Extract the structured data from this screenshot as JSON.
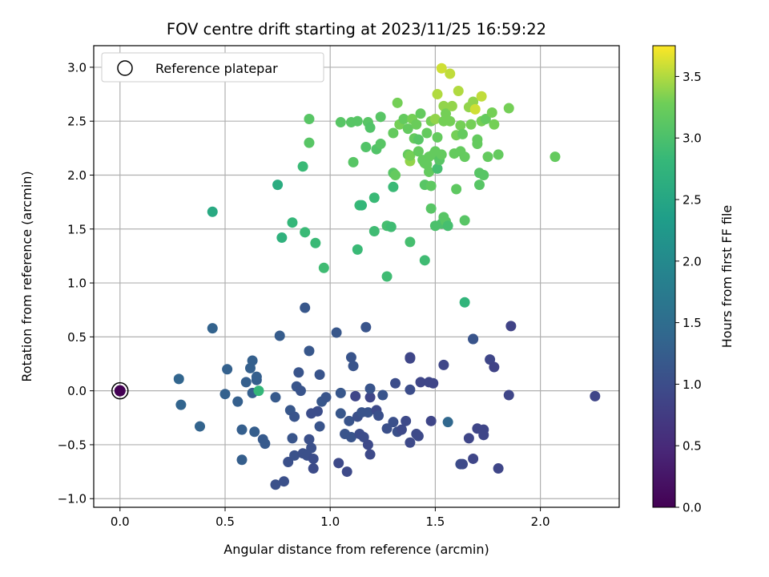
{
  "chart_data": {
    "type": "scatter",
    "title": "FOV centre drift starting at 2023/11/25 16:59:22",
    "xlabel": "Angular distance from reference (arcmin)",
    "ylabel": "Rotation from reference (arcmin)",
    "xlim": [
      -0.125,
      2.375
    ],
    "ylim": [
      -1.08,
      3.2
    ],
    "xticks": [
      0.0,
      0.5,
      1.0,
      1.5,
      2.0
    ],
    "xtick_labels": [
      "0.0",
      "0.5",
      "1.0",
      "1.5",
      "2.0"
    ],
    "yticks": [
      -1.0,
      -0.5,
      0.0,
      0.5,
      1.0,
      1.5,
      2.0,
      2.5,
      3.0
    ],
    "ytick_labels": [
      "−1.0",
      "−0.5",
      "0.0",
      "0.5",
      "1.0",
      "1.5",
      "2.0",
      "2.5",
      "3.0"
    ],
    "grid": true,
    "legend": {
      "position": "top-left",
      "label": "Reference platepar"
    },
    "colormap": "viridis",
    "colorbar": {
      "label": "Hours from first FF file",
      "range": [
        0.0,
        3.75
      ],
      "ticks": [
        0.0,
        0.5,
        1.0,
        1.5,
        2.0,
        2.5,
        3.0,
        3.5
      ],
      "tick_labels": [
        "0.0",
        "0.5",
        "1.0",
        "1.5",
        "2.0",
        "2.5",
        "3.0",
        "3.5"
      ]
    },
    "reference_point": {
      "x": 0.0,
      "y": 0.0,
      "c": 0.0
    },
    "points": [
      [
        0.28,
        0.11,
        1.38
      ],
      [
        0.29,
        -0.13,
        1.36
      ],
      [
        0.38,
        -0.33,
        1.34
      ],
      [
        0.44,
        0.58,
        1.33
      ],
      [
        0.5,
        -0.03,
        1.3
      ],
      [
        0.51,
        0.2,
        1.3
      ],
      [
        0.56,
        -0.1,
        1.28
      ],
      [
        0.58,
        -0.36,
        1.27
      ],
      [
        0.58,
        -0.64,
        1.25
      ],
      [
        0.6,
        0.08,
        1.27
      ],
      [
        0.62,
        0.21,
        1.28
      ],
      [
        0.63,
        0.28,
        1.28
      ],
      [
        0.63,
        -0.02,
        1.28
      ],
      [
        0.64,
        -0.38,
        1.25
      ],
      [
        0.65,
        0.1,
        1.25
      ],
      [
        0.65,
        0.13,
        1.27
      ],
      [
        0.66,
        0.0,
        2.8
      ],
      [
        0.68,
        -0.45,
        1.2
      ],
      [
        0.69,
        -0.49,
        1.2
      ],
      [
        0.74,
        -0.87,
        1.05
      ],
      [
        0.74,
        -0.06,
        1.2
      ],
      [
        0.76,
        0.51,
        1.22
      ],
      [
        0.78,
        -0.84,
        1.05
      ],
      [
        0.8,
        -0.66,
        1.05
      ],
      [
        0.81,
        -0.18,
        1.15
      ],
      [
        0.82,
        -0.44,
        1.12
      ],
      [
        0.83,
        -0.24,
        1.1
      ],
      [
        0.83,
        -0.6,
        1.08
      ],
      [
        0.84,
        0.04,
        1.12
      ],
      [
        0.85,
        0.17,
        1.1
      ],
      [
        0.86,
        0.0,
        1.1
      ],
      [
        0.87,
        -0.58,
        1.05
      ],
      [
        0.88,
        0.77,
        1.15
      ],
      [
        0.89,
        -0.6,
        1.05
      ],
      [
        0.9,
        0.37,
        1.15
      ],
      [
        0.9,
        -0.45,
        1.05
      ],
      [
        0.91,
        -0.21,
        1.0
      ],
      [
        0.91,
        -0.53,
        1.05
      ],
      [
        0.92,
        -0.72,
        0.98
      ],
      [
        0.92,
        -0.63,
        1.0
      ],
      [
        0.94,
        -0.19,
        1.0
      ],
      [
        0.95,
        -0.33,
        1.1
      ],
      [
        0.95,
        0.15,
        1.1
      ],
      [
        0.96,
        -0.1,
        1.15
      ],
      [
        0.98,
        -0.06,
        1.12
      ],
      [
        1.03,
        0.54,
        1.15
      ],
      [
        1.04,
        -0.67,
        0.95
      ],
      [
        1.05,
        -0.21,
        1.15
      ],
      [
        1.05,
        -0.02,
        1.15
      ],
      [
        1.07,
        -0.4,
        1.1
      ],
      [
        1.08,
        -0.75,
        0.95
      ],
      [
        1.09,
        -0.28,
        1.1
      ],
      [
        1.1,
        -0.43,
        1.1
      ],
      [
        1.1,
        0.31,
        1.1
      ],
      [
        1.11,
        0.23,
        1.1
      ],
      [
        1.12,
        -0.05,
        0.9
      ],
      [
        1.13,
        -0.24,
        1.05
      ],
      [
        1.14,
        -0.4,
        1.0
      ],
      [
        1.15,
        -0.2,
        1.1
      ],
      [
        1.16,
        -0.43,
        1.0
      ],
      [
        1.17,
        0.59,
        1.1
      ],
      [
        1.18,
        -0.2,
        1.1
      ],
      [
        1.18,
        -0.5,
        0.95
      ],
      [
        1.19,
        -0.59,
        0.95
      ],
      [
        1.19,
        -0.06,
        0.9
      ],
      [
        1.19,
        0.02,
        1.1
      ],
      [
        1.22,
        -0.18,
        0.95
      ],
      [
        1.23,
        -0.23,
        1.05
      ],
      [
        1.25,
        -0.04,
        1.1
      ],
      [
        1.27,
        -0.35,
        1.05
      ],
      [
        1.3,
        -0.29,
        1.05
      ],
      [
        1.31,
        0.07,
        1.0
      ],
      [
        1.32,
        -0.38,
        1.05
      ],
      [
        1.34,
        -0.36,
        0.95
      ],
      [
        1.36,
        -0.28,
        0.95
      ],
      [
        1.38,
        0.3,
        0.9
      ],
      [
        1.38,
        0.31,
        0.9
      ],
      [
        1.38,
        -0.48,
        0.95
      ],
      [
        1.38,
        0.01,
        1.0
      ],
      [
        1.41,
        -0.4,
        0.95
      ],
      [
        1.42,
        -0.42,
        0.95
      ],
      [
        1.43,
        0.08,
        0.9
      ],
      [
        1.47,
        0.08,
        0.9
      ],
      [
        1.48,
        -0.28,
        0.9
      ],
      [
        1.49,
        0.07,
        0.9
      ],
      [
        1.54,
        0.24,
        0.9
      ],
      [
        1.56,
        -0.29,
        1.4
      ],
      [
        1.62,
        -0.68,
        1.0
      ],
      [
        1.63,
        -0.68,
        0.95
      ],
      [
        1.66,
        -0.44,
        0.9
      ],
      [
        1.68,
        0.48,
        1.0
      ],
      [
        1.68,
        0.48,
        1.1
      ],
      [
        1.68,
        -0.63,
        0.9
      ],
      [
        1.7,
        -0.35,
        0.9
      ],
      [
        1.73,
        -0.36,
        0.9
      ],
      [
        1.73,
        -0.41,
        0.9
      ],
      [
        1.76,
        0.29,
        0.9
      ],
      [
        1.78,
        0.22,
        0.85
      ],
      [
        1.8,
        -0.72,
        0.9
      ],
      [
        1.85,
        -0.04,
        0.9
      ],
      [
        1.86,
        0.6,
        0.85
      ],
      [
        2.26,
        -0.05,
        0.9
      ],
      [
        0.44,
        1.66,
        2.55
      ],
      [
        0.75,
        1.91,
        2.6
      ],
      [
        0.77,
        1.42,
        2.7
      ],
      [
        0.82,
        1.56,
        2.8
      ],
      [
        0.88,
        1.47,
        2.85
      ],
      [
        0.87,
        2.08,
        2.85
      ],
      [
        0.9,
        2.3,
        3.1
      ],
      [
        0.9,
        2.52,
        3.1
      ],
      [
        0.93,
        1.37,
        2.85
      ],
      [
        0.97,
        1.14,
        2.9
      ],
      [
        1.05,
        2.49,
        3.1
      ],
      [
        1.1,
        2.49,
        3.1
      ],
      [
        1.11,
        2.12,
        3.1
      ],
      [
        1.13,
        2.5,
        3.1
      ],
      [
        1.13,
        1.31,
        2.85
      ],
      [
        1.14,
        1.72,
        2.85
      ],
      [
        1.15,
        1.72,
        2.8
      ],
      [
        1.17,
        2.26,
        3.05
      ],
      [
        1.18,
        2.49,
        3.1
      ],
      [
        1.19,
        2.44,
        3.05
      ],
      [
        1.21,
        1.79,
        2.85
      ],
      [
        1.21,
        1.48,
        2.9
      ],
      [
        1.22,
        2.24,
        3.05
      ],
      [
        1.24,
        2.54,
        3.1
      ],
      [
        1.24,
        2.29,
        3.1
      ],
      [
        1.27,
        1.06,
        2.9
      ],
      [
        1.27,
        1.53,
        2.95
      ],
      [
        1.29,
        1.52,
        2.9
      ],
      [
        1.3,
        2.02,
        3.1
      ],
      [
        1.3,
        1.89,
        2.85
      ],
      [
        1.3,
        2.39,
        3.2
      ],
      [
        1.31,
        2.0,
        3.2
      ],
      [
        1.32,
        2.67,
        3.3
      ],
      [
        1.33,
        2.47,
        3.3
      ],
      [
        1.35,
        2.52,
        3.2
      ],
      [
        1.37,
        2.43,
        3.2
      ],
      [
        1.37,
        2.19,
        3.2
      ],
      [
        1.38,
        2.13,
        3.4
      ],
      [
        1.38,
        2.18,
        3.3
      ],
      [
        1.38,
        1.38,
        2.95
      ],
      [
        1.39,
        2.52,
        3.3
      ],
      [
        1.4,
        2.34,
        3.2
      ],
      [
        1.41,
        2.47,
        3.25
      ],
      [
        1.42,
        2.22,
        3.2
      ],
      [
        1.42,
        2.33,
        3.1
      ],
      [
        1.43,
        2.57,
        3.2
      ],
      [
        1.44,
        2.14,
        3.2
      ],
      [
        1.45,
        2.11,
        3.2
      ],
      [
        1.45,
        1.91,
        3.1
      ],
      [
        1.45,
        1.21,
        2.9
      ],
      [
        1.46,
        2.39,
        3.2
      ],
      [
        1.46,
        2.1,
        3.2
      ],
      [
        1.47,
        2.03,
        3.2
      ],
      [
        1.47,
        2.17,
        3.2
      ],
      [
        1.48,
        2.5,
        3.3
      ],
      [
        1.48,
        1.69,
        3.1
      ],
      [
        1.48,
        1.9,
        3.15
      ],
      [
        1.49,
        2.19,
        3.2
      ],
      [
        1.5,
        2.22,
        3.2
      ],
      [
        1.5,
        2.52,
        3.4
      ],
      [
        1.5,
        1.53,
        3.0
      ],
      [
        1.51,
        2.75,
        3.5
      ],
      [
        1.51,
        2.06,
        2.95
      ],
      [
        1.51,
        2.35,
        3.2
      ],
      [
        1.52,
        2.14,
        3.1
      ],
      [
        1.53,
        2.19,
        3.2
      ],
      [
        1.53,
        1.55,
        3.0
      ],
      [
        1.53,
        2.99,
        3.6
      ],
      [
        1.54,
        2.64,
        3.4
      ],
      [
        1.54,
        2.5,
        3.3
      ],
      [
        1.54,
        1.61,
        3.1
      ],
      [
        1.55,
        1.57,
        3.1
      ],
      [
        1.55,
        2.57,
        3.3
      ],
      [
        1.56,
        1.53,
        2.95
      ],
      [
        1.57,
        2.94,
        3.55
      ],
      [
        1.57,
        2.5,
        3.3
      ],
      [
        1.58,
        2.64,
        3.4
      ],
      [
        1.59,
        2.2,
        3.2
      ],
      [
        1.6,
        1.87,
        3.15
      ],
      [
        1.6,
        2.37,
        3.3
      ],
      [
        1.61,
        2.78,
        3.5
      ],
      [
        1.62,
        2.22,
        3.2
      ],
      [
        1.62,
        2.46,
        3.3
      ],
      [
        1.63,
        2.38,
        3.2
      ],
      [
        1.64,
        2.17,
        3.2
      ],
      [
        1.64,
        1.58,
        3.1
      ],
      [
        1.64,
        0.82,
        2.75
      ],
      [
        1.66,
        2.63,
        3.4
      ],
      [
        1.67,
        2.47,
        3.3
      ],
      [
        1.68,
        2.68,
        3.4
      ],
      [
        1.69,
        2.61,
        3.6
      ],
      [
        1.7,
        2.33,
        3.2
      ],
      [
        1.7,
        2.29,
        3.2
      ],
      [
        1.71,
        2.02,
        3.1
      ],
      [
        1.71,
        1.91,
        3.1
      ],
      [
        1.72,
        2.5,
        3.3
      ],
      [
        1.72,
        2.73,
        3.55
      ],
      [
        1.73,
        2.0,
        3.1
      ],
      [
        1.74,
        2.52,
        3.2
      ],
      [
        1.75,
        2.17,
        3.2
      ],
      [
        1.77,
        2.58,
        3.3
      ],
      [
        1.78,
        2.47,
        3.3
      ],
      [
        1.8,
        2.19,
        3.2
      ],
      [
        1.85,
        2.62,
        3.3
      ],
      [
        2.07,
        2.17,
        3.2
      ]
    ]
  }
}
